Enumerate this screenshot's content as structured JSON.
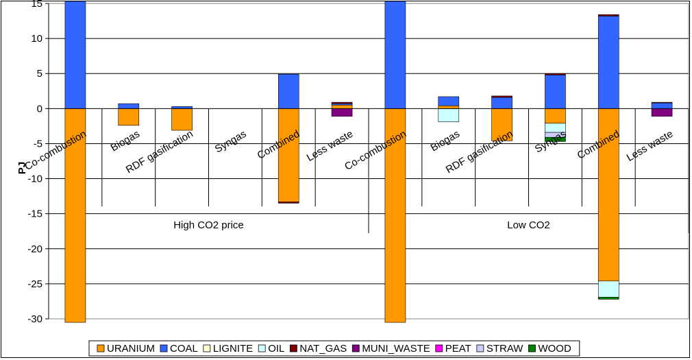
{
  "chart_data": {
    "type": "bar",
    "stacked": true,
    "title": "",
    "xlabel": "",
    "ylabel": "PJ",
    "ylim": [
      -30,
      15
    ],
    "yticks": [
      15,
      10,
      5,
      0,
      -5,
      -10,
      -15,
      -20,
      -25,
      -30
    ],
    "grid": true,
    "legend_position": "bottom",
    "groups": [
      {
        "label": "High CO2 price",
        "categories": [
          "Co-combustion",
          "Biogas",
          "RDF gasification",
          "Syngas",
          "Combined",
          "Less waste"
        ]
      },
      {
        "label": "Low CO2",
        "categories": [
          "Co-combustion",
          "Biogas",
          "RDF gasification",
          "Syngas",
          "Combined",
          "Less waste"
        ]
      }
    ],
    "categories": [
      "Co-combustion",
      "Biogas",
      "RDF gasification",
      "Syngas",
      "Combined",
      "Less waste",
      "Co-combustion",
      "Biogas",
      "RDF gasification",
      "Syngas",
      "Combined",
      "Less waste"
    ],
    "series": [
      {
        "name": "URANIUM",
        "color": "#FF9900",
        "values": [
          -30.5,
          -2.4,
          -3.1,
          0,
          -13.3,
          0.5,
          -30.5,
          0.4,
          -4.6,
          -2.1,
          -24.6,
          0
        ]
      },
      {
        "name": "COAL",
        "color": "#3366FF",
        "values": [
          15.3,
          0.7,
          0.3,
          0,
          4.9,
          0.2,
          15.3,
          1.3,
          1.6,
          4.8,
          13.2,
          0.8
        ]
      },
      {
        "name": "LIGNITE",
        "color": "#FFFFCC",
        "values": [
          0,
          0,
          0,
          0,
          0,
          0,
          0,
          0,
          0,
          0,
          0,
          0
        ]
      },
      {
        "name": "OIL",
        "color": "#CCFFFF",
        "values": [
          0,
          0,
          0,
          0,
          0,
          0,
          0,
          -1.9,
          0,
          -1.3,
          -2.3,
          0
        ]
      },
      {
        "name": "NAT_GAS",
        "color": "#800000",
        "values": [
          0,
          0,
          0,
          0,
          -0.2,
          0.2,
          0,
          0,
          0.2,
          0.2,
          0.2,
          0.1
        ]
      },
      {
        "name": "MUNI_WASTE",
        "color": "#800080",
        "values": [
          0,
          0,
          0,
          0,
          0,
          -1.1,
          0,
          0,
          0,
          0,
          0,
          -1.1
        ]
      },
      {
        "name": "PEAT",
        "color": "#FF00FF",
        "values": [
          0,
          0,
          0,
          0,
          0,
          0,
          0,
          0,
          0,
          0,
          0,
          0
        ]
      },
      {
        "name": "STRAW",
        "color": "#CCCCFF",
        "values": [
          0,
          0,
          0,
          0,
          0,
          0,
          0,
          0,
          0,
          -0.7,
          0,
          0
        ]
      },
      {
        "name": "WOOD",
        "color": "#008000",
        "values": [
          0,
          0,
          0,
          0,
          0,
          0,
          0,
          0,
          0,
          -0.6,
          -0.3,
          0
        ]
      }
    ]
  }
}
